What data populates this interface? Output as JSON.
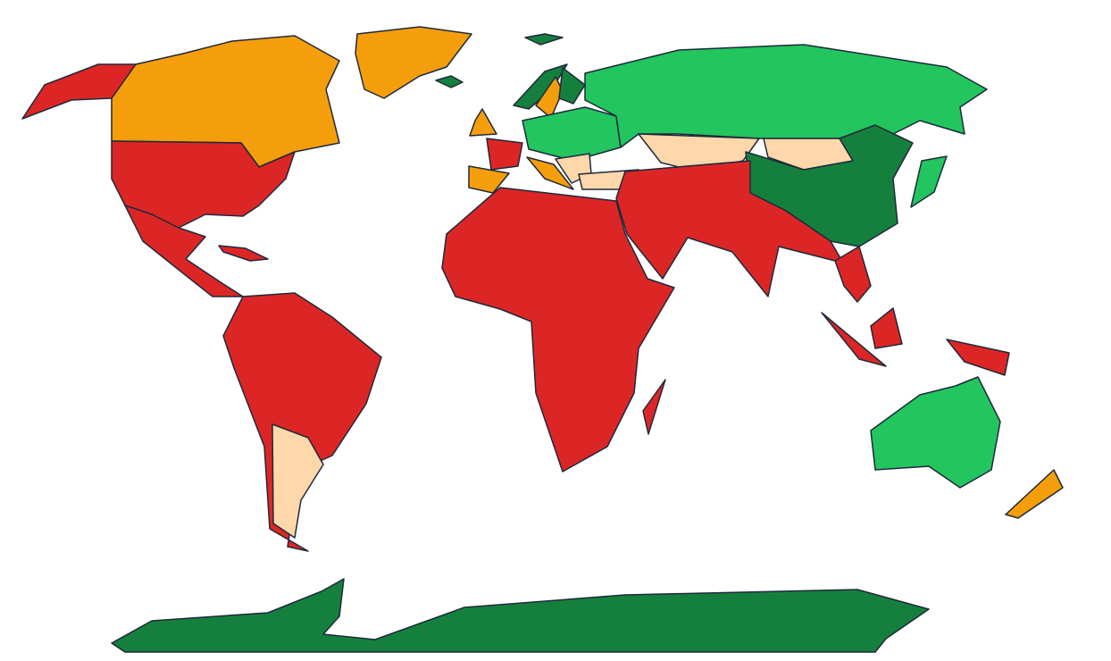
{
  "map": {
    "type": "choropleth",
    "projection": "world",
    "legend": "none",
    "colors": {
      "red": "#dc2626",
      "orange": "#f59e0b",
      "peach": "#fed7aa",
      "light_green": "#22c55e",
      "dark_green": "#15803d",
      "border": "#1e293b",
      "background": "#ffffff"
    },
    "regions": {
      "alaska": "red",
      "canada": "orange",
      "greenland": "orange",
      "usa": "red",
      "mexico-central-america": "red",
      "caribbean": "red",
      "south-america": "red",
      "argentina": "peach",
      "uk": "orange",
      "france": "red",
      "spain": "orange",
      "norway": "dark_green",
      "sweden": "orange",
      "finland": "dark_green",
      "central-europe": "light_green",
      "italy": "orange",
      "balkans": "peach",
      "turkey": "peach",
      "russia": "light_green",
      "kazakhstan": "peach",
      "mongolia": "peach",
      "china": "dark_green",
      "japan": "light_green",
      "middle-east-south-asia": "red",
      "southeast-asia": "red",
      "sumatra": "red",
      "borneo": "red",
      "papua-new-guinea": "red",
      "africa": "red",
      "madagascar": "red",
      "australia": "light_green",
      "new-zealand": "orange",
      "antarctica": "dark_green",
      "svalbard": "dark_green",
      "iceland": "dark_green"
    }
  }
}
